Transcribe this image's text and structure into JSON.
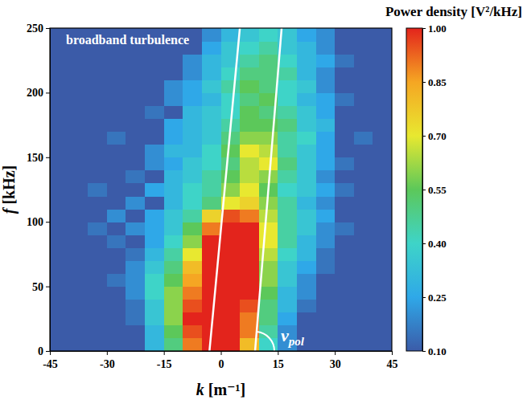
{
  "chart_data": {
    "type": "heatmap",
    "x_label": "k [m⁻¹]",
    "y_label": "f [kHz]",
    "xlim": [
      -45,
      45
    ],
    "ylim": [
      0,
      250
    ],
    "xticks": [
      -45,
      -30,
      -15,
      0,
      15,
      30,
      45
    ],
    "yticks": [
      0,
      50,
      100,
      150,
      200,
      250
    ],
    "xbins": [
      -45,
      -40,
      -35,
      -30,
      -25,
      -20,
      -15,
      -10,
      -5,
      0,
      5,
      10,
      15,
      20,
      25,
      30,
      35,
      40,
      45
    ],
    "ybins": [
      0,
      10,
      20,
      30,
      40,
      50,
      60,
      70,
      80,
      90,
      100,
      110,
      120,
      130,
      140,
      150,
      160,
      170,
      180,
      190,
      200,
      210,
      220,
      230,
      240,
      250
    ],
    "cells": [
      [
        0.1,
        0.1,
        0.1,
        0.1,
        0.1,
        0.3,
        0.5,
        0.9,
        1,
        1,
        0.8,
        0.4,
        0.2,
        0.1,
        0.1,
        0.1,
        0.1,
        0.1
      ],
      [
        0.1,
        0.1,
        0.1,
        0.1,
        0.1,
        0.3,
        0.55,
        0.95,
        1,
        1,
        0.9,
        0.45,
        0.2,
        0.1,
        0.1,
        0.1,
        0.1,
        0.1
      ],
      [
        0.1,
        0.1,
        0.1,
        0.1,
        0.15,
        0.35,
        0.6,
        1,
        1,
        1,
        0.9,
        0.5,
        0.25,
        0.1,
        0.1,
        0.1,
        0.1,
        0.1
      ],
      [
        0.1,
        0.1,
        0.1,
        0.1,
        0.15,
        0.35,
        0.6,
        0.95,
        1,
        1,
        0.95,
        0.5,
        0.3,
        0.15,
        0.1,
        0.1,
        0.1,
        0.1
      ],
      [
        0.1,
        0.1,
        0.1,
        0.1,
        0.2,
        0.4,
        0.6,
        0.9,
        1,
        1,
        1,
        0.55,
        0.3,
        0.2,
        0.1,
        0.1,
        0.1,
        0.1
      ],
      [
        0.1,
        0.1,
        0.1,
        0.15,
        0.2,
        0.4,
        0.55,
        0.85,
        1,
        1,
        1,
        0.6,
        0.35,
        0.2,
        0.1,
        0.1,
        0.1,
        0.1
      ],
      [
        0.1,
        0.1,
        0.1,
        0.1,
        0.2,
        0.35,
        0.5,
        0.8,
        1,
        1,
        1,
        0.6,
        0.35,
        0.25,
        0.15,
        0.1,
        0.1,
        0.1
      ],
      [
        0.1,
        0.1,
        0.1,
        0.1,
        0.15,
        0.3,
        0.45,
        0.7,
        1,
        1,
        1,
        0.65,
        0.4,
        0.3,
        0.15,
        0.1,
        0.1,
        0.1
      ],
      [
        0.1,
        0.1,
        0.1,
        0.15,
        0.1,
        0.25,
        0.4,
        0.6,
        1,
        1,
        1,
        0.7,
        0.45,
        0.3,
        0.2,
        0.1,
        0.1,
        0.1
      ],
      [
        0.1,
        0.1,
        0.15,
        0.1,
        0.2,
        0.25,
        0.35,
        0.55,
        0.9,
        1,
        1,
        0.7,
        0.45,
        0.35,
        0.2,
        0.15,
        0.1,
        0.1
      ],
      [
        0.1,
        0.1,
        0.1,
        0.2,
        0.1,
        0.25,
        0.35,
        0.45,
        0.75,
        0.95,
        0.9,
        0.65,
        0.45,
        0.35,
        0.25,
        0.1,
        0.1,
        0.1
      ],
      [
        0.1,
        0.1,
        0.1,
        0.1,
        0.2,
        0.1,
        0.3,
        0.4,
        0.5,
        0.7,
        0.75,
        0.6,
        0.45,
        0.3,
        0.2,
        0.1,
        0.1,
        0.1
      ],
      [
        0.1,
        0.1,
        0.15,
        0.1,
        0.1,
        0.25,
        0.3,
        0.4,
        0.45,
        0.6,
        0.7,
        0.55,
        0.4,
        0.35,
        0.25,
        0.15,
        0.1,
        0.1
      ],
      [
        0.1,
        0.1,
        0.1,
        0.1,
        0.15,
        0.1,
        0.3,
        0.35,
        0.45,
        0.55,
        0.65,
        0.6,
        0.45,
        0.35,
        0.2,
        0.1,
        0.1,
        0.1
      ],
      [
        0.1,
        0.1,
        0.1,
        0.1,
        0.1,
        0.2,
        0.25,
        0.35,
        0.4,
        0.5,
        0.65,
        0.7,
        0.5,
        0.35,
        0.25,
        0.15,
        0.1,
        0.1
      ],
      [
        0.1,
        0.1,
        0.1,
        0.1,
        0.1,
        0.2,
        0.3,
        0.3,
        0.4,
        0.55,
        0.7,
        0.65,
        0.45,
        0.35,
        0.25,
        0.1,
        0.1,
        0.1
      ],
      [
        0.1,
        0.1,
        0.1,
        0.15,
        0.1,
        0.1,
        0.25,
        0.3,
        0.35,
        0.5,
        0.6,
        0.6,
        0.45,
        0.4,
        0.25,
        0.1,
        0.15,
        0.1
      ],
      [
        0.1,
        0.1,
        0.1,
        0.1,
        0.1,
        0.1,
        0.25,
        0.3,
        0.35,
        0.45,
        0.55,
        0.55,
        0.5,
        0.35,
        0.3,
        0.1,
        0.1,
        0.1
      ],
      [
        0.1,
        0.1,
        0.1,
        0.1,
        0.1,
        0.15,
        0.1,
        0.3,
        0.35,
        0.4,
        0.55,
        0.5,
        0.45,
        0.35,
        0.25,
        0.1,
        0.1,
        0.1
      ],
      [
        0.1,
        0.1,
        0.1,
        0.1,
        0.1,
        0.1,
        0.2,
        0.25,
        0.3,
        0.4,
        0.5,
        0.55,
        0.4,
        0.3,
        0.25,
        0.15,
        0.1,
        0.1
      ],
      [
        0.1,
        0.1,
        0.1,
        0.1,
        0.1,
        0.1,
        0.2,
        0.25,
        0.35,
        0.45,
        0.55,
        0.5,
        0.4,
        0.35,
        0.2,
        0.1,
        0.1,
        0.1
      ],
      [
        0.1,
        0.1,
        0.1,
        0.1,
        0.1,
        0.1,
        0.1,
        0.2,
        0.3,
        0.4,
        0.5,
        0.5,
        0.45,
        0.3,
        0.2,
        0.1,
        0.1,
        0.1
      ],
      [
        0.1,
        0.1,
        0.1,
        0.1,
        0.1,
        0.1,
        0.1,
        0.2,
        0.3,
        0.35,
        0.45,
        0.5,
        0.4,
        0.3,
        0.25,
        0.15,
        0.1,
        0.1
      ],
      [
        0.1,
        0.1,
        0.1,
        0.1,
        0.1,
        0.1,
        0.1,
        0.1,
        0.25,
        0.35,
        0.4,
        0.45,
        0.35,
        0.3,
        0.2,
        0.1,
        0.1,
        0.1
      ],
      [
        0.1,
        0.1,
        0.1,
        0.1,
        0.1,
        0.1,
        0.1,
        0.1,
        0.2,
        0.3,
        0.35,
        0.4,
        0.35,
        0.25,
        0.2,
        0.1,
        0.1,
        0.1
      ]
    ],
    "colorbar": {
      "title": "Power density [V²/kHz]",
      "range": [
        0.1,
        1
      ],
      "ticks": [
        {
          "value": 0.1,
          "label": "0.10"
        },
        {
          "value": 0.25,
          "label": "0.25"
        },
        {
          "value": 0.4,
          "label": "0.40"
        },
        {
          "value": 0.55,
          "label": "0.55"
        },
        {
          "value": 0.7,
          "label": "0.70"
        },
        {
          "value": 0.85,
          "label": "0.85"
        },
        {
          "value": 1,
          "label": "1.00"
        }
      ]
    },
    "lines": [
      {
        "k": [
          -3,
          5
        ],
        "f": [
          0,
          250
        ]
      },
      {
        "k": [
          9,
          16
        ],
        "f": [
          0,
          250
        ]
      }
    ],
    "annotations": [
      {
        "text": "broadband turbulence"
      },
      {
        "text": "v",
        "subscript": "pol"
      }
    ]
  }
}
